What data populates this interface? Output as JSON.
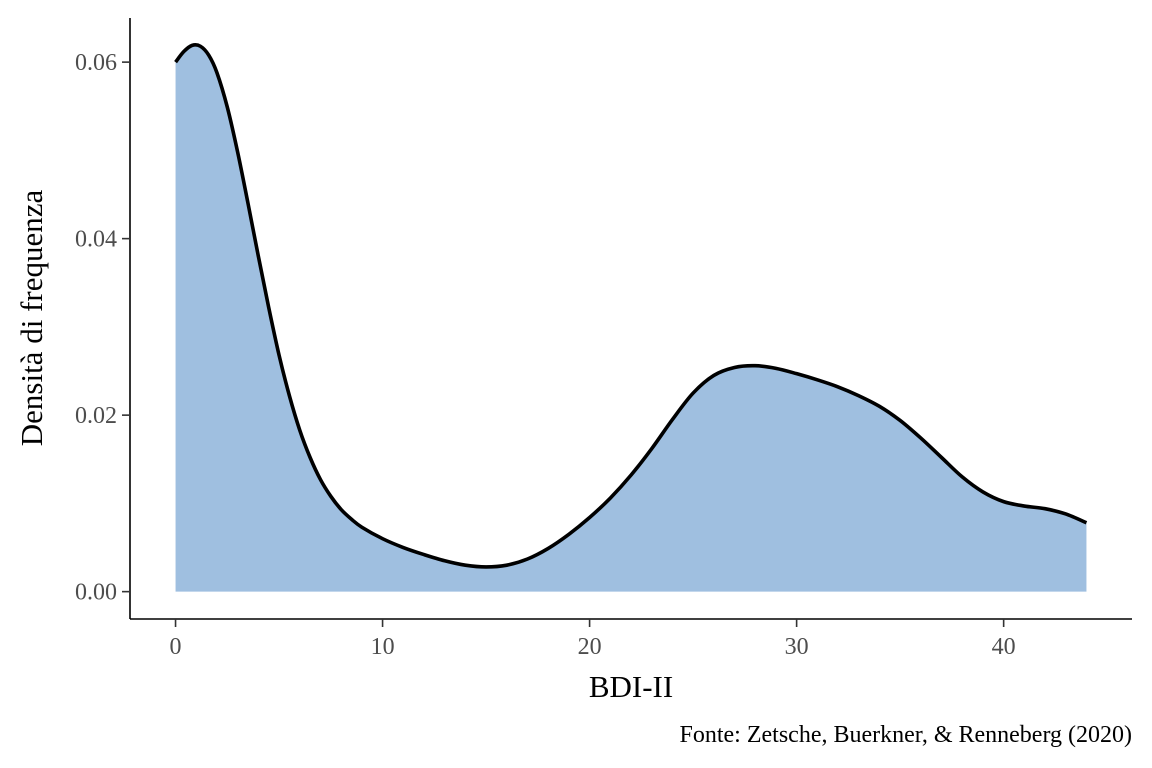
{
  "chart_data": {
    "type": "area",
    "xlabel": "BDI-II",
    "ylabel": "Densità di frequenza",
    "caption": "Fonte: Zetsche, Buerkner, & Renneberg (2020)",
    "xlim": [
      -2.2,
      46.2
    ],
    "ylim": [
      -0.0031,
      0.065
    ],
    "x_ticks": [
      0,
      10,
      20,
      30,
      40
    ],
    "x_tick_labels": [
      "0",
      "10",
      "20",
      "30",
      "40"
    ],
    "y_ticks": [
      0,
      0.02,
      0.04,
      0.06
    ],
    "y_tick_labels": [
      "0.00",
      "0.02",
      "0.04",
      "0.06"
    ],
    "grid": false,
    "legend": "none",
    "fill_color": "#9fbfe0",
    "line_color": "#000000",
    "series": [
      {
        "x": [
          0,
          0.4,
          0.8,
          1.2,
          1.6,
          2,
          2.5,
          3,
          3.5,
          4,
          4.5,
          5,
          5.5,
          6,
          6.5,
          7,
          7.5,
          8,
          8.5,
          9,
          10,
          11,
          12,
          13,
          14,
          15,
          16,
          17,
          18,
          19,
          20,
          21,
          22,
          23,
          24,
          25,
          26,
          27,
          28,
          29,
          30,
          31,
          32,
          33,
          34,
          35,
          36,
          37,
          38,
          39,
          40,
          41,
          42,
          43,
          44
        ],
        "y": [
          0.06,
          0.0612,
          0.0619,
          0.0618,
          0.0608,
          0.0588,
          0.0549,
          0.0498,
          0.044,
          0.038,
          0.0322,
          0.0268,
          0.0222,
          0.0183,
          0.0152,
          0.0127,
          0.0108,
          0.0093,
          0.0082,
          0.0073,
          0.006,
          0.005,
          0.0042,
          0.0035,
          0.003,
          0.0028,
          0.003,
          0.0037,
          0.0049,
          0.0065,
          0.0084,
          0.0106,
          0.0132,
          0.0162,
          0.0195,
          0.0225,
          0.0245,
          0.0254,
          0.0256,
          0.0253,
          0.0247,
          0.024,
          0.0232,
          0.0222,
          0.021,
          0.0194,
          0.0174,
          0.0152,
          0.013,
          0.0113,
          0.0102,
          0.0097,
          0.0094,
          0.0088,
          0.0078
        ]
      }
    ]
  }
}
